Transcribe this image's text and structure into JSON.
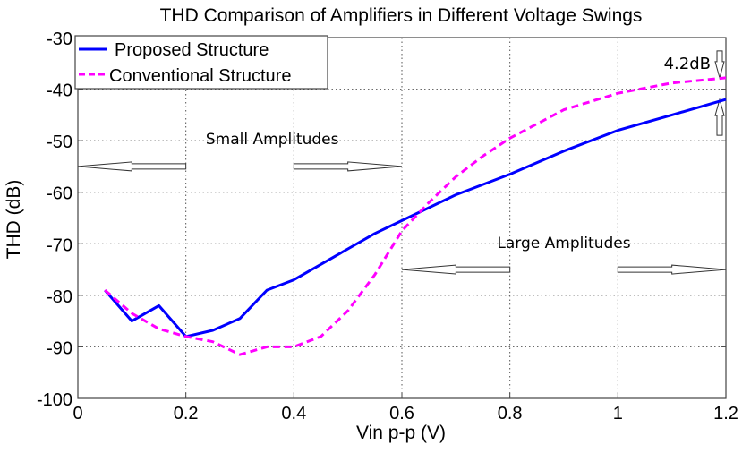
{
  "chart_data": {
    "type": "line",
    "title": "THD Comparison of Amplifiers in Different Voltage Swings",
    "xlabel": "Vin p-p (V)",
    "ylabel": "THD (dB)",
    "xlim": [
      0,
      1.2
    ],
    "ylim": [
      -100,
      -30
    ],
    "xticks": [
      0,
      0.2,
      0.4,
      0.6,
      0.8,
      1,
      1.2
    ],
    "xtick_labels": [
      "0",
      "0.2",
      "0.4",
      "0.6",
      "0.8",
      "1",
      "1.2"
    ],
    "yticks": [
      -100,
      -90,
      -80,
      -70,
      -60,
      -50,
      -40,
      -30
    ],
    "ytick_labels": [
      "-100",
      "-90",
      "-80",
      "-70",
      "-60",
      "-50",
      "-40",
      "-30"
    ],
    "grid": true,
    "legend_position": "top-left",
    "series": [
      {
        "name": "Proposed Structure",
        "color": "#0000ff",
        "style": "solid",
        "x": [
          0.05,
          0.1,
          0.15,
          0.2,
          0.25,
          0.3,
          0.35,
          0.4,
          0.45,
          0.5,
          0.55,
          0.6,
          0.65,
          0.7,
          0.8,
          0.9,
          1.0,
          1.1,
          1.2
        ],
        "y": [
          -79,
          -85,
          -82,
          -88,
          -86.8,
          -84.5,
          -79,
          -77,
          -74,
          -71,
          -68,
          -65.5,
          -63,
          -60.5,
          -56.5,
          -52,
          -48,
          -45,
          -42
        ]
      },
      {
        "name": "Conventional Structure",
        "color": "#ff00ff",
        "style": "dashed",
        "x": [
          0.05,
          0.1,
          0.15,
          0.2,
          0.25,
          0.3,
          0.35,
          0.4,
          0.45,
          0.5,
          0.55,
          0.6,
          0.65,
          0.7,
          0.75,
          0.8,
          0.9,
          1.0,
          1.1,
          1.2
        ],
        "y": [
          -79,
          -83.5,
          -86.5,
          -88,
          -89,
          -91.5,
          -90,
          -90,
          -88,
          -83,
          -76,
          -67.5,
          -62,
          -57,
          -53,
          -49.5,
          -44,
          -40.8,
          -38.8,
          -37.8
        ]
      }
    ],
    "annotations": {
      "small_amplitudes": {
        "text": "Small Amplitudes",
        "label_pos": [
          0.36,
          -50.7
        ],
        "arrow_y": -55,
        "left_arrow": [
          0.2,
          0
        ],
        "right_arrow": [
          0.4,
          0.6
        ]
      },
      "large_amplitudes": {
        "text": "Large Amplitudes",
        "label_pos": [
          0.9,
          -70.8
        ],
        "arrow_y": -75,
        "left_arrow": [
          0.8,
          0.6
        ],
        "right_arrow": [
          1.0,
          1.2
        ]
      },
      "gap": {
        "text": "4.2dB",
        "x": 1.2,
        "top": -37.8,
        "bottom": -42
      }
    }
  }
}
